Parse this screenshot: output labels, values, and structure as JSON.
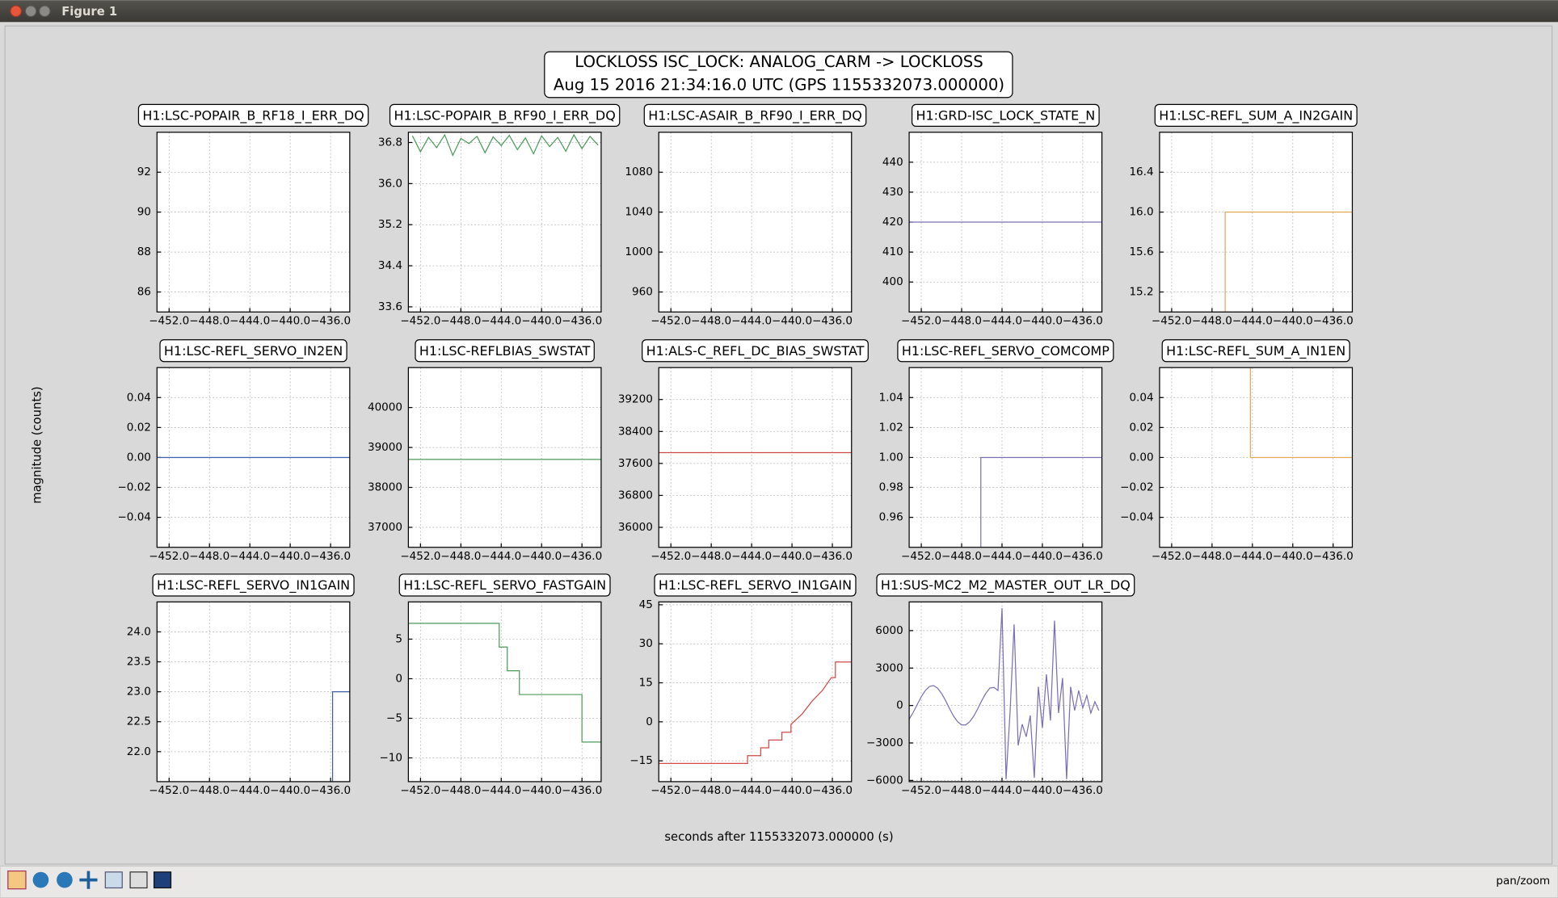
{
  "window": {
    "title": "Figure 1",
    "status": "pan/zoom"
  },
  "figure": {
    "title": "LOCKLOSS ISC_LOCK: ANALOG_CARM -> LOCKLOSS",
    "subtitle": "Aug 15 2016 21:34:16.0 UTC (GPS 1155332073.000000)",
    "xlabel": "seconds after 1155332073.000000 (s)",
    "ylabel": "magnitude (counts)"
  },
  "chart_data": [
    {
      "type": "line",
      "title": "H1:LSC-POPAIR_B_RF18_I_ERR_DQ",
      "xlim": [
        -453.2,
        -434.1
      ],
      "xticks": [
        {
          "value": -452,
          "label": "−452.0"
        },
        {
          "value": -448,
          "label": "−448.0"
        },
        {
          "value": -444,
          "label": "−444.0"
        },
        {
          "value": -440,
          "label": "−440.0"
        },
        {
          "value": -436,
          "label": "−436.0"
        }
      ],
      "ylim": [
        85,
        94
      ],
      "yticks": [
        86,
        88,
        90,
        92
      ],
      "grid": true,
      "color": "#3c5da8",
      "x": [],
      "values": []
    },
    {
      "type": "line",
      "title": "H1:LSC-POPAIR_B_RF90_I_ERR_DQ",
      "xlim": [
        -453.2,
        -434.1
      ],
      "xticks": [
        {
          "value": -452,
          "label": "−452.0"
        },
        {
          "value": -448,
          "label": "−448.0"
        },
        {
          "value": -444,
          "label": "−444.0"
        },
        {
          "value": -440,
          "label": "−440.0"
        },
        {
          "value": -436,
          "label": "−436.0"
        }
      ],
      "ylim": [
        33.5,
        37.0
      ],
      "yticks": [
        33.6,
        34.4,
        35.2,
        {
          "value": 36,
          "label": "36.0"
        },
        36.8
      ],
      "grid": true,
      "color": "#4c9a5a",
      "x": [
        -452.8,
        -452.0,
        -451.2,
        -450.4,
        -449.6,
        -448.8,
        -448.0,
        -447.2,
        -446.4,
        -445.6,
        -444.8,
        -444.0,
        -443.2,
        -442.4,
        -441.6,
        -440.8,
        -440.0,
        -439.2,
        -438.4,
        -437.6,
        -436.8,
        -436.0,
        -435.2,
        -434.4
      ],
      "values": [
        36.93,
        36.62,
        36.9,
        36.7,
        36.95,
        36.55,
        36.88,
        36.78,
        36.92,
        36.6,
        36.91,
        36.74,
        36.94,
        36.66,
        36.89,
        36.58,
        36.93,
        36.72,
        36.9,
        36.63,
        36.95,
        36.68,
        36.92,
        36.75
      ]
    },
    {
      "type": "line",
      "title": "H1:LSC-ASAIR_B_RF90_I_ERR_DQ",
      "xlim": [
        -453.2,
        -434.1
      ],
      "xticks": [
        {
          "value": -452,
          "label": "−452.0"
        },
        {
          "value": -448,
          "label": "−448.0"
        },
        {
          "value": -444,
          "label": "−444.0"
        },
        {
          "value": -440,
          "label": "−440.0"
        },
        {
          "value": -436,
          "label": "−436.0"
        }
      ],
      "ylim": [
        940,
        1120
      ],
      "yticks": [
        960,
        1000,
        1040,
        1080
      ],
      "grid": true,
      "color": "#d04a4a",
      "x": [],
      "values": []
    },
    {
      "type": "line",
      "title": "H1:GRD-ISC_LOCK_STATE_N",
      "xlim": [
        -453.2,
        -434.1
      ],
      "xticks": [
        {
          "value": -452,
          "label": "−452.0"
        },
        {
          "value": -448,
          "label": "−448.0"
        },
        {
          "value": -444,
          "label": "−444.0"
        },
        {
          "value": -440,
          "label": "−440.0"
        },
        {
          "value": -436,
          "label": "−436.0"
        }
      ],
      "ylim": [
        390,
        450
      ],
      "yticks": [
        400,
        410,
        420,
        430,
        440
      ],
      "grid": true,
      "color": "#7a6fb5",
      "x": [
        -453.2,
        -434.1
      ],
      "values": [
        420,
        420
      ]
    },
    {
      "type": "line",
      "title": "H1:LSC-REFL_SUM_A_IN2GAIN",
      "xlim": [
        -453.2,
        -434.1
      ],
      "xticks": [
        {
          "value": -452,
          "label": "−452.0"
        },
        {
          "value": -448,
          "label": "−448.0"
        },
        {
          "value": -444,
          "label": "−444.0"
        },
        {
          "value": -440,
          "label": "−440.0"
        },
        {
          "value": -436,
          "label": "−436.0"
        }
      ],
      "ylim": [
        15.0,
        16.8
      ],
      "yticks": [
        15.2,
        15.6,
        {
          "value": 16,
          "label": "16.0"
        },
        16.4
      ],
      "grid": true,
      "color": "#e3a857",
      "x": [
        -446.7,
        -446.7,
        -434.1
      ],
      "values": [
        15.0,
        16.0,
        16.0
      ]
    },
    {
      "type": "line",
      "title": "H1:LSC-REFL_SERVO_IN2EN",
      "xlim": [
        -453.2,
        -434.1
      ],
      "xticks": [
        {
          "value": -452,
          "label": "−452.0"
        },
        {
          "value": -448,
          "label": "−448.0"
        },
        {
          "value": -444,
          "label": "−444.0"
        },
        {
          "value": -440,
          "label": "−440.0"
        },
        {
          "value": -436,
          "label": "−436.0"
        }
      ],
      "ylim": [
        -0.06,
        0.06
      ],
      "yticks": [
        {
          "value": -0.04,
          "label": "−0.04"
        },
        {
          "value": -0.02,
          "label": "−0.02"
        },
        {
          "value": 0,
          "label": "0.00"
        },
        0.02,
        0.04
      ],
      "grid": true,
      "color": "#3c5da8",
      "x": [
        -453.2,
        -434.1
      ],
      "values": [
        0,
        0
      ]
    },
    {
      "type": "line",
      "title": "H1:LSC-REFLBIAS_SWSTAT",
      "xlim": [
        -453.2,
        -434.1
      ],
      "xticks": [
        {
          "value": -452,
          "label": "−452.0"
        },
        {
          "value": -448,
          "label": "−448.0"
        },
        {
          "value": -444,
          "label": "−444.0"
        },
        {
          "value": -440,
          "label": "−440.0"
        },
        {
          "value": -436,
          "label": "−436.0"
        }
      ],
      "ylim": [
        36500,
        41000
      ],
      "yticks": [
        37000,
        38000,
        39000,
        40000
      ],
      "grid": true,
      "color": "#4c9a5a",
      "x": [
        -453.2,
        -434.1
      ],
      "values": [
        38700,
        38700
      ]
    },
    {
      "type": "line",
      "title": "H1:ALS-C_REFL_DC_BIAS_SWSTAT",
      "xlim": [
        -453.2,
        -434.1
      ],
      "xticks": [
        {
          "value": -452,
          "label": "−452.0"
        },
        {
          "value": -448,
          "label": "−448.0"
        },
        {
          "value": -444,
          "label": "−444.0"
        },
        {
          "value": -440,
          "label": "−440.0"
        },
        {
          "value": -436,
          "label": "−436.0"
        }
      ],
      "ylim": [
        35500,
        40000
      ],
      "yticks": [
        36000,
        36800,
        37600,
        38400,
        39200
      ],
      "grid": true,
      "color": "#d04a4a",
      "x": [
        -453.2,
        -434.1
      ],
      "values": [
        37870,
        37870
      ]
    },
    {
      "type": "line",
      "title": "H1:LSC-REFL_SERVO_COMCOMP",
      "xlim": [
        -453.2,
        -434.1
      ],
      "xticks": [
        {
          "value": -452,
          "label": "−452.0"
        },
        {
          "value": -448,
          "label": "−448.0"
        },
        {
          "value": -444,
          "label": "−444.0"
        },
        {
          "value": -440,
          "label": "−440.0"
        },
        {
          "value": -436,
          "label": "−436.0"
        }
      ],
      "ylim": [
        0.94,
        1.06
      ],
      "yticks": [
        0.96,
        0.98,
        {
          "value": 1,
          "label": "1.00"
        },
        1.02,
        1.04
      ],
      "grid": true,
      "color": "#7a6fb5",
      "x": [
        -446.1,
        -446.1,
        -434.1
      ],
      "values": [
        0.94,
        1.0,
        1.0
      ]
    },
    {
      "type": "line",
      "title": "H1:LSC-REFL_SUM_A_IN1EN",
      "xlim": [
        -453.2,
        -434.1
      ],
      "xticks": [
        {
          "value": -452,
          "label": "−452.0"
        },
        {
          "value": -448,
          "label": "−448.0"
        },
        {
          "value": -444,
          "label": "−444.0"
        },
        {
          "value": -440,
          "label": "−440.0"
        },
        {
          "value": -436,
          "label": "−436.0"
        }
      ],
      "ylim": [
        -0.06,
        0.06
      ],
      "yticks": [
        {
          "value": -0.04,
          "label": "−0.04"
        },
        {
          "value": -0.02,
          "label": "−0.02"
        },
        {
          "value": 0,
          "label": "0.00"
        },
        0.02,
        0.04
      ],
      "grid": true,
      "color": "#e3a857",
      "x": [
        -444.2,
        -444.2,
        -434.1
      ],
      "values": [
        0.06,
        0,
        0
      ]
    },
    {
      "type": "line",
      "title": "H1:LSC-REFL_SERVO_IN1GAIN",
      "xlim": [
        -453.2,
        -434.1
      ],
      "xticks": [
        {
          "value": -452,
          "label": "−452.0"
        },
        {
          "value": -448,
          "label": "−448.0"
        },
        {
          "value": -444,
          "label": "−444.0"
        },
        {
          "value": -440,
          "label": "−440.0"
        },
        {
          "value": -436,
          "label": "−436.0"
        }
      ],
      "ylim": [
        21.5,
        24.5
      ],
      "yticks": [
        {
          "value": 22,
          "label": "22.0"
        },
        22.5,
        {
          "value": 23,
          "label": "23.0"
        },
        23.5,
        {
          "value": 24,
          "label": "24.0"
        }
      ],
      "grid": true,
      "color": "#3c5da8",
      "x": [
        -435.8,
        -435.8,
        -434.1
      ],
      "values": [
        21.5,
        23,
        23
      ]
    },
    {
      "type": "line",
      "title": "H1:LSC-REFL_SERVO_FASTGAIN",
      "xlim": [
        -453.2,
        -434.1
      ],
      "xticks": [
        {
          "value": -452,
          "label": "−452.0"
        },
        {
          "value": -448,
          "label": "−448.0"
        },
        {
          "value": -444,
          "label": "−444.0"
        },
        {
          "value": -440,
          "label": "−440.0"
        },
        {
          "value": -436,
          "label": "−436.0"
        }
      ],
      "ylim": [
        -13,
        9.7
      ],
      "yticks": [
        {
          "value": -10,
          "label": "−10"
        },
        {
          "value": -5,
          "label": "−5"
        },
        0,
        5
      ],
      "grid": true,
      "color": "#4c9a5a",
      "x": [
        -453.2,
        -444.2,
        -444.2,
        -443.4,
        -443.4,
        -442.2,
        -442.2,
        -436.0,
        -436.0,
        -434.1
      ],
      "values": [
        7,
        7,
        4,
        4,
        1,
        1,
        -2,
        -2,
        -8,
        -8
      ]
    },
    {
      "type": "line",
      "title": "H1:LSC-REFL_SERVO_IN1GAIN",
      "xlim": [
        -453.2,
        -434.1
      ],
      "xticks": [
        {
          "value": -452,
          "label": "−452.0"
        },
        {
          "value": -448,
          "label": "−448.0"
        },
        {
          "value": -444,
          "label": "−444.0"
        },
        {
          "value": -440,
          "label": "−440.0"
        },
        {
          "value": -436,
          "label": "−436.0"
        }
      ],
      "ylim": [
        -23,
        46.1
      ],
      "yticks": [
        {
          "value": -15,
          "label": "−15"
        },
        0,
        15,
        30,
        45
      ],
      "grid": true,
      "color": "#d04a4a",
      "x": [
        -453.2,
        -444.4,
        -444.4,
        -443.1,
        -443.1,
        -442.3,
        -442.3,
        -441.0,
        -441.0,
        -440.1,
        -440.1,
        -439.0,
        -438.0,
        -437.0,
        -436.1,
        -435.7,
        -435.7,
        -434.1
      ],
      "values": [
        -16,
        -16,
        -13,
        -13,
        -10,
        -10,
        -7,
        -7,
        -4,
        -4,
        -1,
        3,
        8,
        12,
        17,
        17,
        23,
        23
      ]
    },
    {
      "type": "line",
      "title": "H1:SUS-MC2_M2_MASTER_OUT_LR_DQ",
      "xlim": [
        -453.2,
        -434.1
      ],
      "xticks": [
        {
          "value": -452,
          "label": "−452.0"
        },
        {
          "value": -448,
          "label": "−448.0"
        },
        {
          "value": -444,
          "label": "−444.0"
        },
        {
          "value": -440,
          "label": "−440.0"
        },
        {
          "value": -436,
          "label": "−436.0"
        }
      ],
      "ylim": [
        -6100,
        8300
      ],
      "yticks": [
        {
          "value": -6000,
          "label": "−6000"
        },
        {
          "value": -3000,
          "label": "−3000"
        },
        0,
        3000,
        6000
      ],
      "grid": true,
      "color": "#7a6fb5",
      "x": [
        -453.2,
        -452.8,
        -452.4,
        -452.0,
        -451.6,
        -451.2,
        -450.8,
        -450.4,
        -450.0,
        -449.6,
        -449.2,
        -448.8,
        -448.4,
        -448.0,
        -447.6,
        -447.2,
        -446.8,
        -446.4,
        -446.0,
        -445.6,
        -445.2,
        -444.8,
        -444.4,
        -444.0,
        -443.6,
        -443.2,
        -442.8,
        -442.4,
        -442.0,
        -441.6,
        -441.2,
        -440.8,
        -440.4,
        -440.0,
        -439.6,
        -439.2,
        -438.8,
        -438.4,
        -438.0,
        -437.6,
        -437.2,
        -436.8,
        -436.4,
        -436.0,
        -435.6,
        -435.2,
        -434.8,
        -434.4
      ],
      "values": [
        -1100,
        -550,
        80,
        700,
        1200,
        1520,
        1600,
        1400,
        980,
        410,
        -250,
        -850,
        -1300,
        -1560,
        -1560,
        -1300,
        -850,
        -250,
        400,
        980,
        1400,
        1450,
        1200,
        7800,
        -5900,
        -500,
        6500,
        -3200,
        -1500,
        -2500,
        -800,
        -5800,
        1500,
        -1800,
        2500,
        -1200,
        6800,
        -600,
        2200,
        -5900,
        1500,
        -400,
        1200,
        -200,
        800,
        -600,
        300,
        -400
      ]
    }
  ]
}
